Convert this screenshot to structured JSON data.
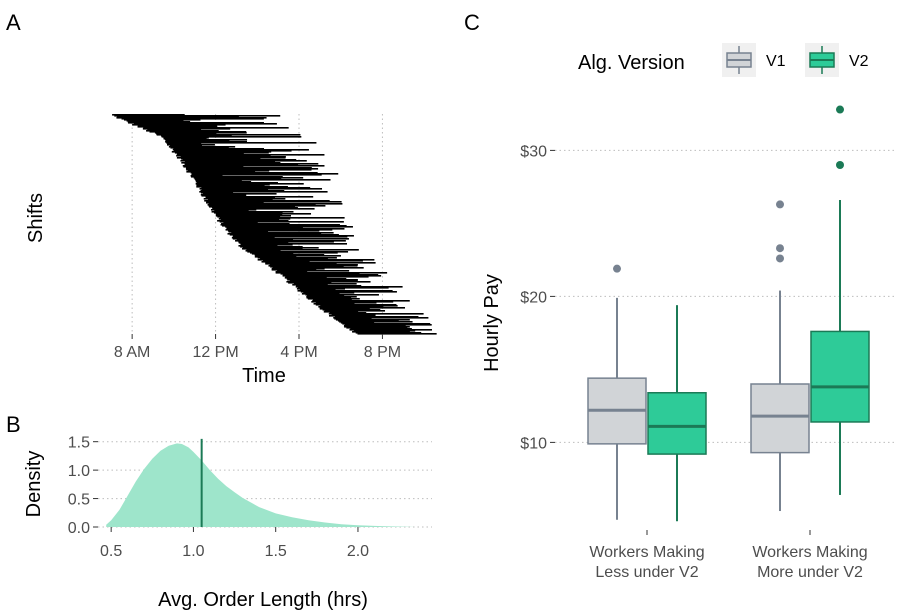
{
  "panels": {
    "a": {
      "letter": "A"
    },
    "b": {
      "letter": "B"
    },
    "c": {
      "letter": "C"
    }
  },
  "chart_data": [
    {
      "panel": "A",
      "type": "gantt",
      "xlabel": "Time",
      "ylabel": "Shifts",
      "x_ticks": [
        "8 AM",
        "12 PM",
        "4 PM",
        "8 PM"
      ],
      "x_tick_hours": [
        8,
        12,
        16,
        20
      ],
      "xlim_hours": [
        5.5,
        23
      ],
      "gridlines_vertical": true,
      "start_curve_hours": [
        [
          0,
          7.0
        ],
        [
          0.1,
          9.4
        ],
        [
          0.2,
          10.3
        ],
        [
          0.3,
          11.0
        ],
        [
          0.4,
          11.6
        ],
        [
          0.5,
          12.3
        ],
        [
          0.6,
          13.2
        ],
        [
          0.7,
          14.7
        ],
        [
          0.8,
          16.0
        ],
        [
          0.9,
          17.3
        ],
        [
          1.0,
          18.7
        ]
      ],
      "shift_length_range_hours": [
        1.5,
        8
      ],
      "bar_color": "#000000"
    },
    {
      "panel": "B",
      "type": "area",
      "xlabel": "Avg. Order Length (hrs)",
      "ylabel": "Density",
      "x_ticks": [
        "0.5",
        "1.0",
        "1.5",
        "2.0"
      ],
      "y_ticks": [
        "0.0",
        "0.5",
        "1.0",
        "1.5"
      ],
      "xlim": [
        0.42,
        2.45
      ],
      "ylim": [
        0,
        1.6
      ],
      "fill_color": "#9ee5cb",
      "vline_color": "#1b7a56",
      "vline_x": 1.05,
      "x": [
        0.47,
        0.5,
        0.55,
        0.6,
        0.65,
        0.7,
        0.75,
        0.8,
        0.85,
        0.9,
        0.93,
        0.97,
        1.0,
        1.05,
        1.1,
        1.15,
        1.2,
        1.25,
        1.3,
        1.4,
        1.5,
        1.6,
        1.7,
        1.8,
        1.9,
        2.0,
        2.1,
        2.2,
        2.3,
        2.35
      ],
      "y": [
        0.04,
        0.12,
        0.3,
        0.55,
        0.8,
        1.02,
        1.2,
        1.34,
        1.43,
        1.47,
        1.46,
        1.4,
        1.32,
        1.17,
        1.0,
        0.85,
        0.72,
        0.61,
        0.51,
        0.35,
        0.24,
        0.17,
        0.12,
        0.08,
        0.05,
        0.03,
        0.02,
        0.01,
        0.005,
        0.0
      ]
    },
    {
      "panel": "C",
      "type": "box",
      "xlabel": "",
      "ylabel": "Hourly Pay",
      "y_ticks": [
        "$10",
        "$20",
        "$30"
      ],
      "y_tick_values": [
        10,
        20,
        30
      ],
      "ylim": [
        4,
        34
      ],
      "legend_title": "Alg. Version",
      "legend_position": "top",
      "categories": [
        [
          "Workers Making",
          "Less under V2"
        ],
        [
          "Workers Making",
          "More under V2"
        ]
      ],
      "series": [
        {
          "name": "V1",
          "fill": "#d1d4d7",
          "stroke": "#778290",
          "boxes": [
            {
              "whisker_low": 4.7,
              "q1": 9.9,
              "median": 12.2,
              "q3": 14.4,
              "whisker_high": 19.9,
              "outliers": [
                21.9
              ]
            },
            {
              "whisker_low": 5.3,
              "q1": 9.3,
              "median": 11.8,
              "q3": 14.0,
              "whisker_high": 20.4,
              "outliers": [
                26.3,
                23.3,
                22.6
              ]
            }
          ]
        },
        {
          "name": "V2",
          "fill": "#2ecb98",
          "stroke": "#1b7a56",
          "boxes": [
            {
              "whisker_low": 4.6,
              "q1": 9.2,
              "median": 11.1,
              "q3": 13.4,
              "whisker_high": 19.4,
              "outliers": []
            },
            {
              "whisker_low": 6.4,
              "q1": 11.4,
              "median": 13.8,
              "q3": 17.6,
              "whisker_high": 26.6,
              "outliers": [
                32.8,
                29.0
              ]
            }
          ]
        }
      ]
    }
  ]
}
